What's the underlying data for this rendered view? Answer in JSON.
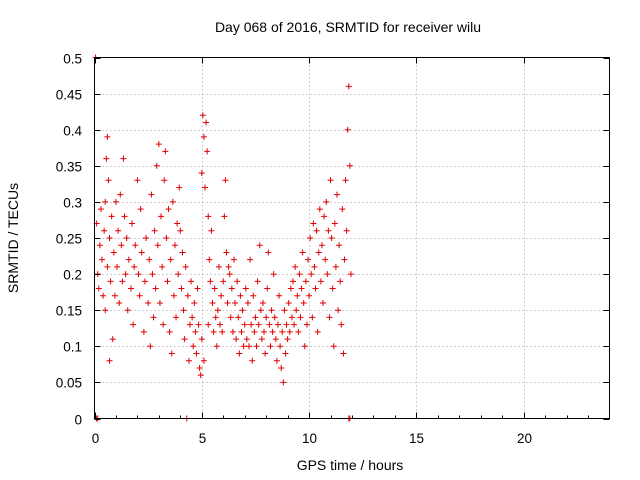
{
  "chart_data": {
    "type": "scatter",
    "title": "Day 068 of 2016, SRMTID for receiver wilu",
    "xlabel": "GPS time / hours",
    "ylabel": "SRMTID / TECUs",
    "xlim": [
      0,
      24
    ],
    "ylim": [
      0,
      0.5
    ],
    "x_ticks": [
      0,
      5,
      10,
      15,
      20
    ],
    "x_tick_labels": [
      "0",
      "5",
      "10",
      "15",
      "20"
    ],
    "y_ticks": [
      0,
      0.05,
      0.1,
      0.15,
      0.2,
      0.25,
      0.3,
      0.35,
      0.4,
      0.45,
      0.5
    ],
    "y_tick_labels": [
      "0",
      "0.05",
      "0.1",
      "0.15",
      "0.2",
      "0.25",
      "0.3",
      "0.35",
      "0.4",
      "0.45",
      "0.5"
    ],
    "grid": true,
    "marker": "+",
    "marker_color": "#e00000",
    "series": [
      {
        "name": "SRMTID",
        "points": [
          [
            0.05,
            0.5
          ],
          [
            0.1,
            0.0
          ],
          [
            0.15,
            0.0
          ],
          [
            0.1,
            0.27
          ],
          [
            0.15,
            0.2
          ],
          [
            0.2,
            0.18
          ],
          [
            0.25,
            0.24
          ],
          [
            0.3,
            0.29
          ],
          [
            0.35,
            0.22
          ],
          [
            0.4,
            0.17
          ],
          [
            0.45,
            0.26
          ],
          [
            0.5,
            0.3
          ],
          [
            0.5,
            0.15
          ],
          [
            0.55,
            0.36
          ],
          [
            0.6,
            0.39
          ],
          [
            0.6,
            0.21
          ],
          [
            0.65,
            0.33
          ],
          [
            0.7,
            0.25
          ],
          [
            0.7,
            0.08
          ],
          [
            0.75,
            0.19
          ],
          [
            0.8,
            0.28
          ],
          [
            0.85,
            0.11
          ],
          [
            0.9,
            0.23
          ],
          [
            0.95,
            0.17
          ],
          [
            1.0,
            0.3
          ],
          [
            1.05,
            0.21
          ],
          [
            1.1,
            0.26
          ],
          [
            1.15,
            0.16
          ],
          [
            1.2,
            0.31
          ],
          [
            1.25,
            0.24
          ],
          [
            1.3,
            0.19
          ],
          [
            1.35,
            0.36
          ],
          [
            1.4,
            0.28
          ],
          [
            1.45,
            0.2
          ],
          [
            1.5,
            0.25
          ],
          [
            1.55,
            0.15
          ],
          [
            1.6,
            0.22
          ],
          [
            1.7,
            0.18
          ],
          [
            1.75,
            0.27
          ],
          [
            1.8,
            0.13
          ],
          [
            1.85,
            0.21
          ],
          [
            1.9,
            0.24
          ],
          [
            2.0,
            0.33
          ],
          [
            2.05,
            0.2
          ],
          [
            2.1,
            0.17
          ],
          [
            2.15,
            0.29
          ],
          [
            2.2,
            0.23
          ],
          [
            2.3,
            0.12
          ],
          [
            2.35,
            0.19
          ],
          [
            2.4,
            0.25
          ],
          [
            2.5,
            0.16
          ],
          [
            2.55,
            0.22
          ],
          [
            2.6,
            0.1
          ],
          [
            2.65,
            0.31
          ],
          [
            2.7,
            0.2
          ],
          [
            2.75,
            0.14
          ],
          [
            2.8,
            0.26
          ],
          [
            2.85,
            0.18
          ],
          [
            2.9,
            0.35
          ],
          [
            2.95,
            0.24
          ],
          [
            3.0,
            0.38
          ],
          [
            3.05,
            0.16
          ],
          [
            3.1,
            0.28
          ],
          [
            3.15,
            0.21
          ],
          [
            3.2,
            0.13
          ],
          [
            3.25,
            0.33
          ],
          [
            3.3,
            0.37
          ],
          [
            3.35,
            0.25
          ],
          [
            3.4,
            0.19
          ],
          [
            3.45,
            0.29
          ],
          [
            3.5,
            0.12
          ],
          [
            3.55,
            0.22
          ],
          [
            3.6,
            0.09
          ],
          [
            3.65,
            0.3
          ],
          [
            3.7,
            0.17
          ],
          [
            3.75,
            0.24
          ],
          [
            3.8,
            0.14
          ],
          [
            3.85,
            0.27
          ],
          [
            3.9,
            0.2
          ],
          [
            3.95,
            0.32
          ],
          [
            4.0,
            0.26
          ],
          [
            4.05,
            0.18
          ],
          [
            4.1,
            0.23
          ],
          [
            4.15,
            0.15
          ],
          [
            4.2,
            0.11
          ],
          [
            4.25,
            0.21
          ],
          [
            4.3,
            0.0
          ],
          [
            4.35,
            0.17
          ],
          [
            4.4,
            0.08
          ],
          [
            4.45,
            0.13
          ],
          [
            4.5,
            0.19
          ],
          [
            4.55,
            0.14
          ],
          [
            4.6,
            0.1
          ],
          [
            4.65,
            0.16
          ],
          [
            4.7,
            0.12
          ],
          [
            4.75,
            0.09
          ],
          [
            4.8,
            0.18
          ],
          [
            4.85,
            0.13
          ],
          [
            4.9,
            0.07
          ],
          [
            4.95,
            0.06
          ],
          [
            5.0,
            0.11
          ],
          [
            5.0,
            0.34
          ],
          [
            5.05,
            0.42
          ],
          [
            5.1,
            0.39
          ],
          [
            5.1,
            0.08
          ],
          [
            5.15,
            0.32
          ],
          [
            5.2,
            0.41
          ],
          [
            5.25,
            0.37
          ],
          [
            5.3,
            0.28
          ],
          [
            5.3,
            0.13
          ],
          [
            5.35,
            0.22
          ],
          [
            5.4,
            0.19
          ],
          [
            5.45,
            0.26
          ],
          [
            5.5,
            0.16
          ],
          [
            5.55,
            0.12
          ],
          [
            5.6,
            0.18
          ],
          [
            5.65,
            0.14
          ],
          [
            5.7,
            0.1
          ],
          [
            5.75,
            0.15
          ],
          [
            5.8,
            0.21
          ],
          [
            5.85,
            0.13
          ],
          [
            5.9,
            0.17
          ],
          [
            5.95,
            0.12
          ],
          [
            6.0,
            0.19
          ],
          [
            6.05,
            0.28
          ],
          [
            6.1,
            0.33
          ],
          [
            6.15,
            0.23
          ],
          [
            6.2,
            0.16
          ],
          [
            6.25,
            0.21
          ],
          [
            6.3,
            0.2
          ],
          [
            6.35,
            0.14
          ],
          [
            6.4,
            0.18
          ],
          [
            6.45,
            0.12
          ],
          [
            6.5,
            0.22
          ],
          [
            6.55,
            0.16
          ],
          [
            6.6,
            0.11
          ],
          [
            6.65,
            0.19
          ],
          [
            6.7,
            0.14
          ],
          [
            6.75,
            0.09
          ],
          [
            6.8,
            0.17
          ],
          [
            6.85,
            0.12
          ],
          [
            6.9,
            0.15
          ],
          [
            6.95,
            0.1
          ],
          [
            7.0,
            0.13
          ],
          [
            7.05,
            0.18
          ],
          [
            7.1,
            0.11
          ],
          [
            7.15,
            0.16
          ],
          [
            7.2,
            0.1
          ],
          [
            7.25,
            0.22
          ],
          [
            7.3,
            0.13
          ],
          [
            7.35,
            0.08
          ],
          [
            7.4,
            0.17
          ],
          [
            7.45,
            0.12
          ],
          [
            7.5,
            0.14
          ],
          [
            7.55,
            0.1
          ],
          [
            7.6,
            0.19
          ],
          [
            7.65,
            0.13
          ],
          [
            7.7,
            0.24
          ],
          [
            7.75,
            0.15
          ],
          [
            7.8,
            0.11
          ],
          [
            7.85,
            0.16
          ],
          [
            7.9,
            0.12
          ],
          [
            7.95,
            0.09
          ],
          [
            8.0,
            0.14
          ],
          [
            8.05,
            0.18
          ],
          [
            8.1,
            0.23
          ],
          [
            8.15,
            0.13
          ],
          [
            8.2,
            0.1
          ],
          [
            8.25,
            0.15
          ],
          [
            8.3,
            0.12
          ],
          [
            8.35,
            0.2
          ],
          [
            8.4,
            0.14
          ],
          [
            8.45,
            0.11
          ],
          [
            8.5,
            0.08
          ],
          [
            8.55,
            0.13
          ],
          [
            8.6,
            0.17
          ],
          [
            8.65,
            0.1
          ],
          [
            8.7,
            0.07
          ],
          [
            8.75,
            0.12
          ],
          [
            8.8,
            0.05
          ],
          [
            8.85,
            0.15
          ],
          [
            8.9,
            0.09
          ],
          [
            8.95,
            0.13
          ],
          [
            9.0,
            0.11
          ],
          [
            9.05,
            0.16
          ],
          [
            9.1,
            0.12
          ],
          [
            9.15,
            0.18
          ],
          [
            9.2,
            0.14
          ],
          [
            9.25,
            0.19
          ],
          [
            9.3,
            0.13
          ],
          [
            9.35,
            0.21
          ],
          [
            9.4,
            0.15
          ],
          [
            9.45,
            0.17
          ],
          [
            9.5,
            0.12
          ],
          [
            9.55,
            0.2
          ],
          [
            9.6,
            0.14
          ],
          [
            9.65,
            0.18
          ],
          [
            9.7,
            0.23
          ],
          [
            9.75,
            0.16
          ],
          [
            9.8,
            0.1
          ],
          [
            9.85,
            0.19
          ],
          [
            9.9,
            0.13
          ],
          [
            9.95,
            0.22
          ],
          [
            10.0,
            0.17
          ],
          [
            10.05,
            0.25
          ],
          [
            10.1,
            0.2
          ],
          [
            10.15,
            0.14
          ],
          [
            10.2,
            0.27
          ],
          [
            10.25,
            0.21
          ],
          [
            10.3,
            0.18
          ],
          [
            10.35,
            0.26
          ],
          [
            10.4,
            0.12
          ],
          [
            10.45,
            0.23
          ],
          [
            10.5,
            0.29
          ],
          [
            10.55,
            0.19
          ],
          [
            10.6,
            0.24
          ],
          [
            10.65,
            0.16
          ],
          [
            10.7,
            0.28
          ],
          [
            10.75,
            0.22
          ],
          [
            10.8,
            0.3
          ],
          [
            10.85,
            0.2
          ],
          [
            10.9,
            0.26
          ],
          [
            10.95,
            0.14
          ],
          [
            11.0,
            0.33
          ],
          [
            11.05,
            0.25
          ],
          [
            11.1,
            0.18
          ],
          [
            11.15,
            0.1
          ],
          [
            11.2,
            0.27
          ],
          [
            11.25,
            0.21
          ],
          [
            11.3,
            0.31
          ],
          [
            11.35,
            0.15
          ],
          [
            11.4,
            0.24
          ],
          [
            11.45,
            0.19
          ],
          [
            11.5,
            0.13
          ],
          [
            11.55,
            0.29
          ],
          [
            11.6,
            0.09
          ],
          [
            11.65,
            0.22
          ],
          [
            11.7,
            0.33
          ],
          [
            11.75,
            0.26
          ],
          [
            11.8,
            0.4
          ],
          [
            11.85,
            0.46
          ],
          [
            11.9,
            0.35
          ],
          [
            11.95,
            0.2
          ],
          [
            11.85,
            0.0
          ],
          [
            11.9,
            0.0
          ]
        ]
      }
    ]
  }
}
